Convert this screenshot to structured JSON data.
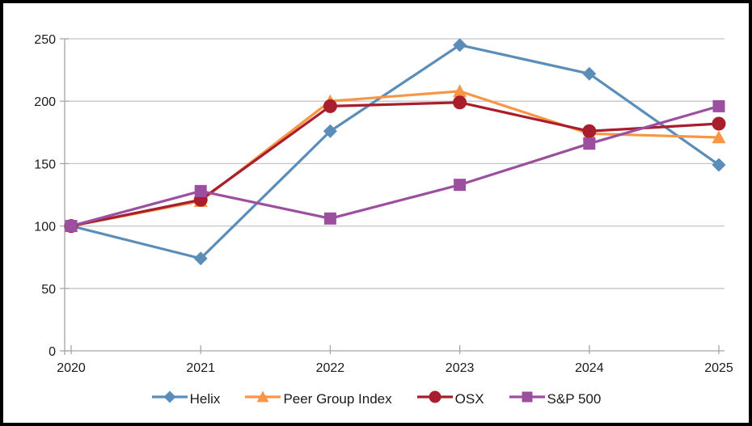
{
  "colors": {
    "background": "#ffffff",
    "frame_border": "#000000",
    "gridline": "#c6c6c6",
    "axis_line": "#a6a6a6",
    "text": "#1a1a1a"
  },
  "chart_data": {
    "type": "line",
    "categories": [
      "2020",
      "2021",
      "2022",
      "2023",
      "2024",
      "2025"
    ],
    "series": [
      {
        "name": "Helix",
        "color": "#5b8db9",
        "marker": "diamond",
        "values": [
          100,
          74,
          176,
          245,
          222,
          149
        ]
      },
      {
        "name": "Peer Group Index",
        "color": "#f79646",
        "marker": "triangle",
        "values": [
          100,
          120,
          200,
          208,
          174,
          171
        ]
      },
      {
        "name": "OSX",
        "color": "#a81e2c",
        "marker": "circle",
        "values": [
          100,
          121,
          196,
          199,
          176,
          182
        ]
      },
      {
        "name": "S&P 500",
        "color": "#9c4f9f",
        "marker": "square",
        "values": [
          100,
          128,
          106,
          133,
          166,
          196
        ]
      }
    ],
    "title": "",
    "xlabel": "",
    "ylabel": "",
    "ylim": [
      0,
      250
    ],
    "ytick_labels": [
      "0",
      "50",
      "100",
      "150",
      "200",
      "250"
    ],
    "grid": true,
    "legend_position": "bottom"
  }
}
